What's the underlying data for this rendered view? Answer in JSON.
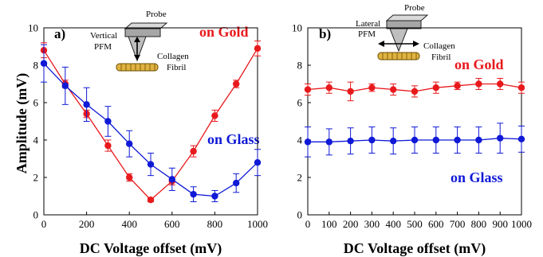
{
  "chart_data": [
    {
      "type": "line",
      "panel_label": "a)",
      "xlabel": "DC Voltage offset (mV)",
      "ylabel": "Amplitude (mV)",
      "xlim": [
        0,
        1000
      ],
      "ylim": [
        0,
        10
      ],
      "xticks": [
        "0",
        "200",
        "400",
        "600",
        "800",
        "1000"
      ],
      "yticks": [
        "0",
        "2",
        "4",
        "6",
        "8",
        "10"
      ],
      "grid": false,
      "inset": {
        "probe_label": "Probe",
        "mode_label_line1": "Vertical",
        "mode_label_line2": "PFM",
        "sample_label_line1": "Collagen",
        "sample_label_line2": "Fibril"
      },
      "series": [
        {
          "name": "on Gold",
          "color": "#e8191c",
          "x": [
            0,
            100,
            200,
            300,
            400,
            500,
            600,
            700,
            800,
            900,
            1000
          ],
          "y": [
            8.8,
            7.0,
            5.4,
            3.7,
            2.0,
            0.8,
            1.8,
            3.4,
            5.3,
            7.0,
            8.9
          ],
          "err": [
            0.4,
            0.2,
            0.2,
            0.3,
            0.2,
            0.1,
            0.2,
            0.3,
            0.3,
            0.2,
            0.4
          ]
        },
        {
          "name": "on Glass",
          "color": "#0f19d6",
          "x": [
            0,
            100,
            200,
            300,
            400,
            500,
            600,
            700,
            800,
            900,
            1000
          ],
          "y": [
            8.1,
            6.9,
            5.9,
            5.0,
            3.8,
            2.7,
            1.9,
            1.1,
            1.0,
            1.7,
            2.8
          ],
          "err": [
            1.0,
            1.0,
            0.9,
            0.8,
            0.7,
            0.6,
            0.6,
            0.4,
            0.3,
            0.5,
            0.7
          ]
        }
      ]
    },
    {
      "type": "line",
      "panel_label": "b)",
      "xlabel": "DC Voltage offset (mV)",
      "ylabel": "",
      "xlim": [
        0,
        1000
      ],
      "ylim": [
        0,
        10
      ],
      "xticks": [
        "0",
        "100",
        "200",
        "300",
        "400",
        "500",
        "600",
        "700",
        "800",
        "900",
        "1000"
      ],
      "yticks": [
        "0",
        "2",
        "4",
        "6",
        "8",
        "10"
      ],
      "grid": false,
      "inset": {
        "probe_label": "Probe",
        "mode_label_line1": "Lateral",
        "mode_label_line2": "PFM",
        "sample_label_line1": "Collagen",
        "sample_label_line2": "Fibril"
      },
      "series": [
        {
          "name": "on Gold",
          "color": "#e8191c",
          "x": [
            0,
            100,
            200,
            300,
            400,
            500,
            600,
            700,
            800,
            900,
            1000
          ],
          "y": [
            6.7,
            6.8,
            6.6,
            6.8,
            6.7,
            6.6,
            6.8,
            6.9,
            7.0,
            7.0,
            6.8
          ],
          "err": [
            0.3,
            0.3,
            0.5,
            0.2,
            0.3,
            0.3,
            0.3,
            0.2,
            0.3,
            0.3,
            0.3
          ]
        },
        {
          "name": "on Glass",
          "color": "#0f19d6",
          "x": [
            0,
            100,
            200,
            300,
            400,
            500,
            600,
            700,
            800,
            900,
            1000
          ],
          "y": [
            3.9,
            3.9,
            3.95,
            4.0,
            3.95,
            4.0,
            4.0,
            4.0,
            4.0,
            4.1,
            4.05
          ],
          "err": [
            0.8,
            0.7,
            0.7,
            0.7,
            0.7,
            0.7,
            0.7,
            0.7,
            0.7,
            0.8,
            0.7
          ]
        }
      ]
    }
  ]
}
